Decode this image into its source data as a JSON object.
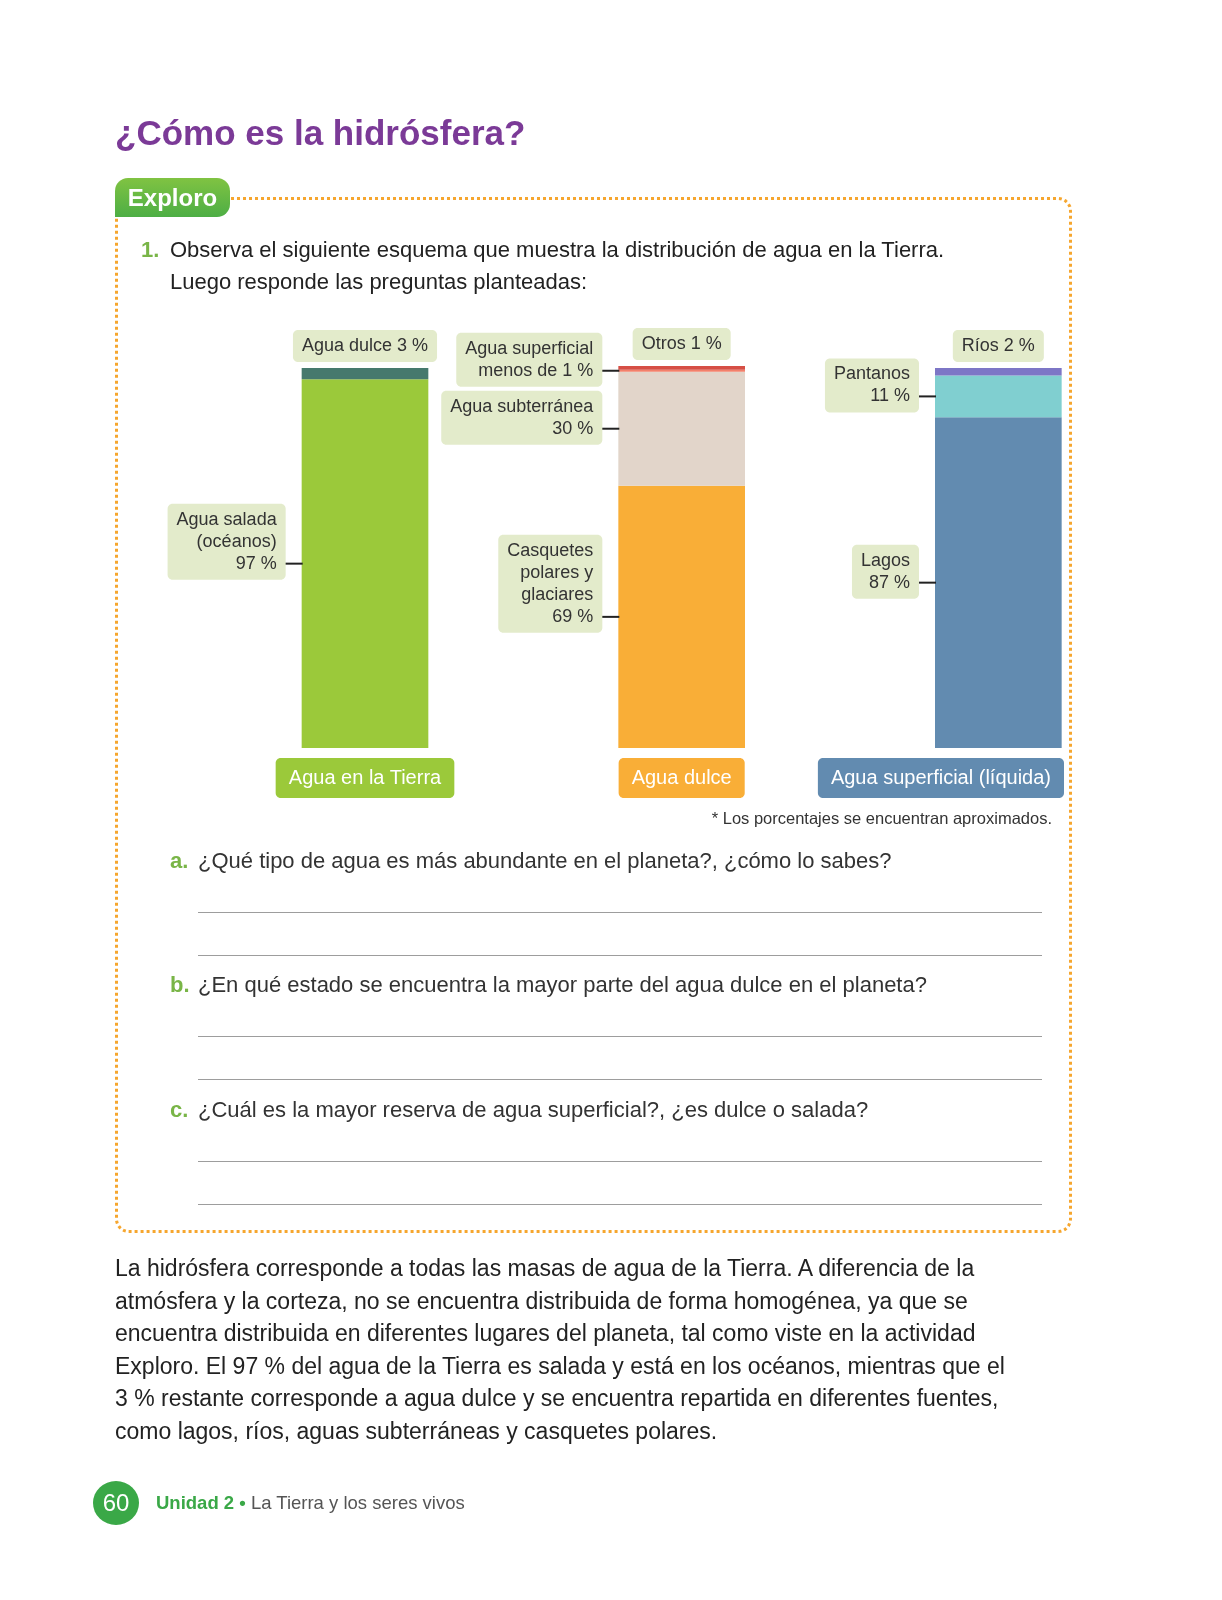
{
  "chart_data": {
    "type": "bar",
    "stacked": true,
    "title": "¿Cómo es la hidrósfera?",
    "categories": [
      "Agua en la Tierra",
      "Agua dulce",
      "Agua superficial (líquida)"
    ],
    "series": [
      {
        "name": "Agua salada (océanos)",
        "color": "#9bc93a",
        "values": [
          97,
          null,
          null
        ],
        "value_labels": [
          "97 %",
          null,
          null
        ]
      },
      {
        "name": "Agua dulce",
        "color": "#46796d",
        "values": [
          3,
          null,
          null
        ],
        "value_labels": [
          "3 %",
          null,
          null
        ]
      },
      {
        "name": "Casquetes polares y glaciares",
        "color": "#f9ae37",
        "values": [
          null,
          69,
          null
        ],
        "value_labels": [
          null,
          "69 %",
          null
        ]
      },
      {
        "name": "Agua subterránea",
        "color": "#e2d5ca",
        "values": [
          null,
          30,
          null
        ],
        "value_labels": [
          null,
          "30 %",
          null
        ]
      },
      {
        "name": "Agua superficial",
        "color": "#f3806b",
        "values": [
          null,
          0.5,
          null
        ],
        "value_labels": [
          null,
          "menos de 1 %",
          null
        ]
      },
      {
        "name": "Otros",
        "color": "#d64f45",
        "values": [
          null,
          1,
          null
        ],
        "value_labels": [
          null,
          "1 %",
          null
        ]
      },
      {
        "name": "Lagos",
        "color": "#628bb0",
        "values": [
          null,
          null,
          87
        ],
        "value_labels": [
          null,
          null,
          "87 %"
        ]
      },
      {
        "name": "Pantanos",
        "color": "#80cfd0",
        "values": [
          null,
          null,
          11
        ],
        "value_labels": [
          null,
          null,
          "11 %"
        ]
      },
      {
        "name": "Ríos",
        "color": "#7d76c6",
        "values": [
          null,
          null,
          2
        ],
        "value_labels": [
          null,
          null,
          "2 %"
        ]
      }
    ],
    "annotations": [
      "Exploro",
      "1. Observa el siguiente esquema que muestra la distribución de agua en la Tierra.",
      "Luego responde las preguntas planteadas:",
      "* Los porcentajes se encuentran aproximados.",
      "a. ¿Qué tipo de agua es más abundante en el planeta?, ¿cómo lo sabes?",
      "b. ¿En qué estado se encuentra la mayor parte del agua dulce en el planeta?",
      "c. ¿Cuál es la mayor reserva de agua superficial?, ¿es dulce o salada?",
      "La hidrósfera corresponde a todas las masas de agua de la Tierra. A diferencia de la atmósfera y la corteza, no se encuentra distribuida de forma homogénea, ya que se encuentra distribuida en diferentes lugares del planeta, tal como viste en la actividad Exploro. El 97 % del agua de la Tierra es salada y está en los océanos, mientras que el 3 % restante corresponde a agua dulce y se encuentra repartida en diferentes fuentes, como lagos, ríos, aguas subterráneas y casquetes polares.",
      "60",
      "Unidad 2 •",
      "La Tierra y los seres vivos"
    ]
  }
}
